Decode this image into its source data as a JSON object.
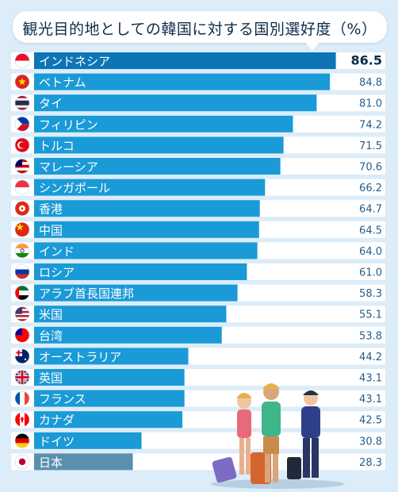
{
  "title": "観光目的地としての韓国に対する国別選好度（%）",
  "colors": {
    "bar": "#1a9ad6",
    "bar_top": "#0d75b6",
    "bar_japan": "#5b8fb0",
    "row_bg": "#ffffff",
    "value_text": "#1f5f92"
  },
  "chart_data": {
    "type": "bar",
    "orientation": "horizontal",
    "title": "観光目的地としての韓国に対する国別選好度（%）",
    "categories": [
      "インドネシア",
      "ベトナム",
      "タイ",
      "フィリピン",
      "トルコ",
      "マレーシア",
      "シンガポール",
      "香港",
      "中国",
      "インド",
      "ロシア",
      "アラブ首長国連邦",
      "米国",
      "台湾",
      "オーストラリア",
      "英国",
      "フランス",
      "カナダ",
      "ドイツ",
      "日本"
    ],
    "flags": [
      "indonesia-flag-icon",
      "vietnam-flag-icon",
      "thailand-flag-icon",
      "philippines-flag-icon",
      "turkey-flag-icon",
      "malaysia-flag-icon",
      "singapore-flag-icon",
      "hongkong-flag-icon",
      "china-flag-icon",
      "india-flag-icon",
      "russia-flag-icon",
      "uae-flag-icon",
      "usa-flag-icon",
      "taiwan-flag-icon",
      "australia-flag-icon",
      "uk-flag-icon",
      "france-flag-icon",
      "canada-flag-icon",
      "germany-flag-icon",
      "japan-flag-icon"
    ],
    "values": [
      86.5,
      84.8,
      81.0,
      74.2,
      71.5,
      70.6,
      66.2,
      64.7,
      64.5,
      64.0,
      61.0,
      58.3,
      55.1,
      53.8,
      44.2,
      43.1,
      43.1,
      42.5,
      30.8,
      28.3
    ],
    "labels": [
      "86.5",
      "84.8",
      "81.0",
      "74.2",
      "71.5",
      "70.6",
      "66.2",
      "64.7",
      "64.5",
      "64.0",
      "61.0",
      "58.3",
      "55.1",
      "53.8",
      "44.2",
      "43.1",
      "43.1",
      "42.5",
      "30.8",
      "28.3"
    ],
    "xlim": [
      0,
      100
    ],
    "grid": false,
    "legend": "none"
  }
}
